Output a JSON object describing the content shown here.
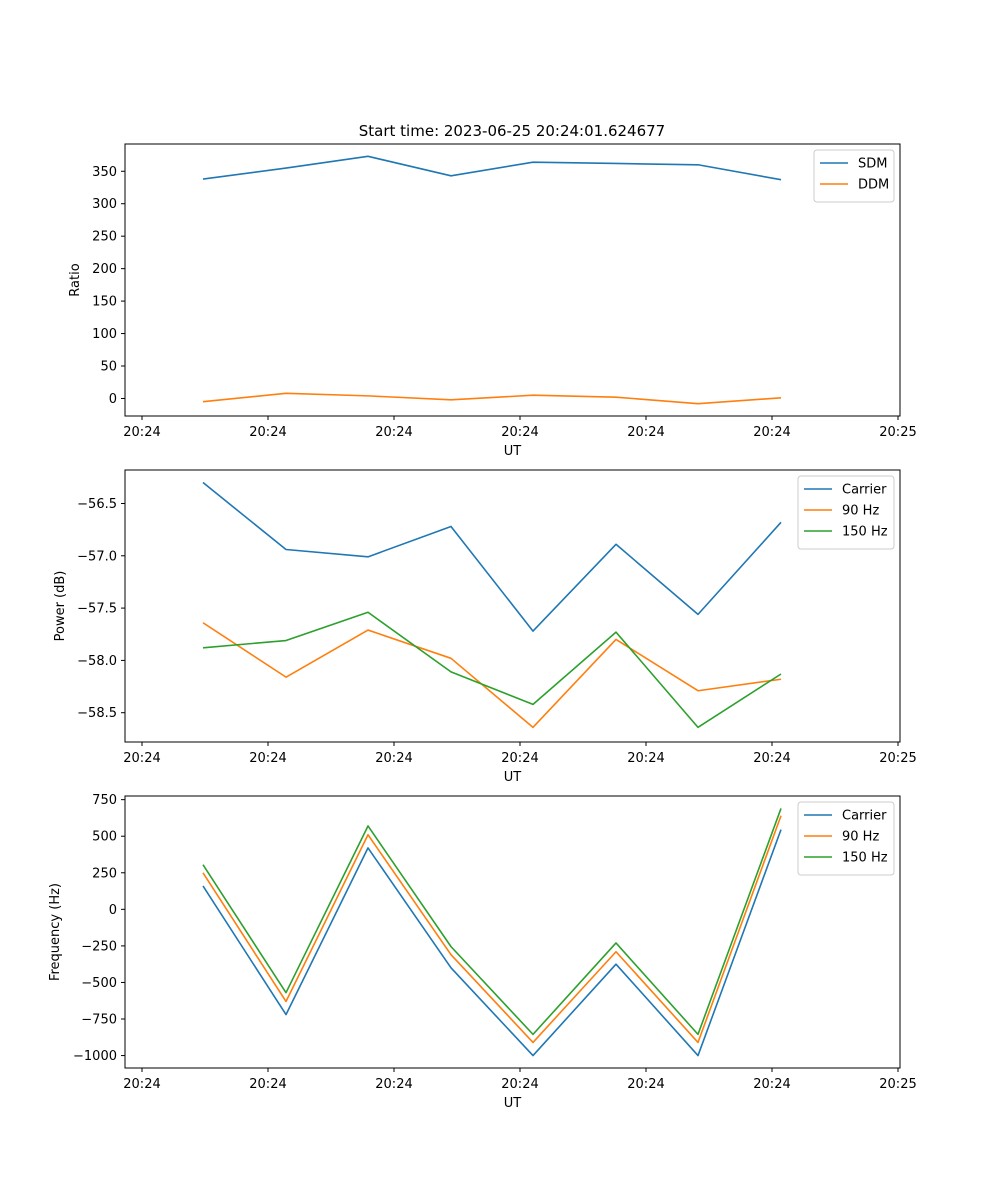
{
  "title": "Start time: 2023-06-25 20:24:01.624677",
  "chart_data": [
    {
      "type": "line",
      "xlabel": "UT",
      "ylabel": "Ratio",
      "x_tick_labels": [
        "20:24",
        "20:24",
        "20:24",
        "20:24",
        "20:24",
        "20:24",
        "20:25"
      ],
      "ylim": [
        -27,
        392
      ],
      "yticks": [
        0,
        50,
        100,
        150,
        200,
        250,
        300,
        350
      ],
      "legend": "top-right",
      "series": [
        {
          "name": "SDM",
          "color": "#1f77b4",
          "values": [
            338,
            355,
            373,
            343,
            364,
            362,
            360,
            337
          ]
        },
        {
          "name": "DDM",
          "color": "#ff7f0e",
          "values": [
            -5,
            8,
            4,
            -2,
            5,
            2,
            -8,
            1
          ]
        }
      ]
    },
    {
      "type": "line",
      "xlabel": "UT",
      "ylabel": "Power (dB)",
      "x_tick_labels": [
        "20:24",
        "20:24",
        "20:24",
        "20:24",
        "20:24",
        "20:24",
        "20:25"
      ],
      "ylim": [
        -58.78,
        -56.18
      ],
      "yticks": [
        -56.5,
        -57.0,
        -57.5,
        -58.0,
        -58.5
      ],
      "ytick_labels": [
        "−56.5",
        "−57.0",
        "−57.5",
        "−58.0",
        "−58.5"
      ],
      "legend": "top-right",
      "series": [
        {
          "name": "Carrier",
          "color": "#1f77b4",
          "values": [
            -56.3,
            -56.94,
            -57.01,
            -56.72,
            -57.72,
            -56.89,
            -57.56,
            -56.68
          ]
        },
        {
          "name": "90 Hz",
          "color": "#ff7f0e",
          "values": [
            -57.64,
            -58.16,
            -57.71,
            -57.98,
            -58.64,
            -57.8,
            -58.29,
            -58.18
          ]
        },
        {
          "name": "150 Hz",
          "color": "#2ca02c",
          "values": [
            -57.88,
            -57.81,
            -57.54,
            -58.11,
            -58.42,
            -57.73,
            -58.64,
            -58.13
          ]
        }
      ]
    },
    {
      "type": "line",
      "xlabel": "UT",
      "ylabel": "Frequency (Hz)",
      "x_tick_labels": [
        "20:24",
        "20:24",
        "20:24",
        "20:24",
        "20:24",
        "20:24",
        "20:25"
      ],
      "ylim": [
        -1085,
        775
      ],
      "yticks": [
        750,
        500,
        250,
        0,
        -250,
        -500,
        -750,
        -1000
      ],
      "ytick_labels": [
        "750",
        "500",
        "250",
        "0",
        "−250",
        "−500",
        "−750",
        "−1000"
      ],
      "legend": "top-right",
      "series": [
        {
          "name": "Carrier",
          "color": "#1f77b4",
          "values": [
            160,
            -720,
            420,
            -400,
            -1000,
            -375,
            -1000,
            545
          ]
        },
        {
          "name": "90 Hz",
          "color": "#ff7f0e",
          "values": [
            250,
            -630,
            510,
            -310,
            -910,
            -290,
            -910,
            640
          ]
        },
        {
          "name": "150 Hz",
          "color": "#2ca02c",
          "values": [
            305,
            -570,
            570,
            -255,
            -855,
            -230,
            -855,
            690
          ]
        }
      ]
    }
  ]
}
